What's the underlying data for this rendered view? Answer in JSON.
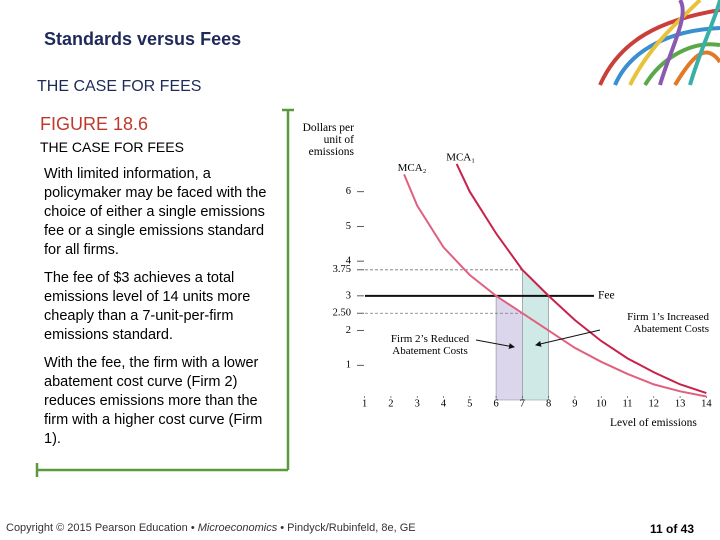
{
  "header": {
    "title": "Standards versus Fees",
    "subtitle": "THE CASE FOR FEES"
  },
  "figure": {
    "label": "FIGURE 18.6",
    "caption_title": "THE CASE FOR FEES",
    "paragraphs": [
      "With limited information, a policymaker may be faced with the choice of either a single emissions fee or a single emissions standard for all firms.",
      "The fee of $3 achieves a total emissions level of 14 units more cheaply than a 7-unit-per-firm emissions standard.",
      "With the fee, the firm with a lower abatement cost curve (Firm 2) reduces emissions more than the firm with a higher cost curve (Firm 1)."
    ]
  },
  "footer": {
    "parts": [
      "Copyright © 2015 Pearson Education • ",
      "Microeconomics",
      " • Pindyck/Rubinfeld, 8e, GE"
    ],
    "page": "11 of 43"
  },
  "chart_data": {
    "type": "line",
    "y_label": "Dollars per unit of emissions",
    "x_label": "Level of emissions",
    "x": [
      2.5,
      3,
      4,
      4.5,
      5,
      6,
      7,
      8,
      9,
      10,
      11,
      12,
      13,
      14
    ],
    "series": [
      {
        "name": "MCA₂",
        "color": "#e0607e",
        "values": [
          6.5,
          5.6,
          4.4,
          4.0,
          3.6,
          3,
          2.5,
          2,
          1.5,
          1.1,
          0.75,
          0.45,
          0.25,
          0.1
        ]
      },
      {
        "name": "MCA₁",
        "color": "#c8224a",
        "values": [
          null,
          null,
          null,
          6.8,
          6,
          4.8,
          3.75,
          3,
          2.3,
          1.7,
          1.2,
          0.8,
          0.45,
          0.2
        ]
      }
    ],
    "fee": {
      "label": "Fee",
      "value": 3
    },
    "annotations": [
      "Firm 1’s Increased Abatement Costs",
      "Firm 2’s Reduced Abatement Costs"
    ],
    "xlim": [
      0.5,
      14.5
    ],
    "ylim": [
      0,
      7
    ],
    "xticks": [
      1,
      2,
      3,
      4,
      5,
      6,
      7,
      8,
      9,
      10,
      11,
      12,
      13,
      14
    ],
    "yticks": [
      1,
      2,
      {
        "value": 2.5,
        "label": "2.50"
      },
      3,
      3.75,
      4,
      5,
      6
    ]
  }
}
